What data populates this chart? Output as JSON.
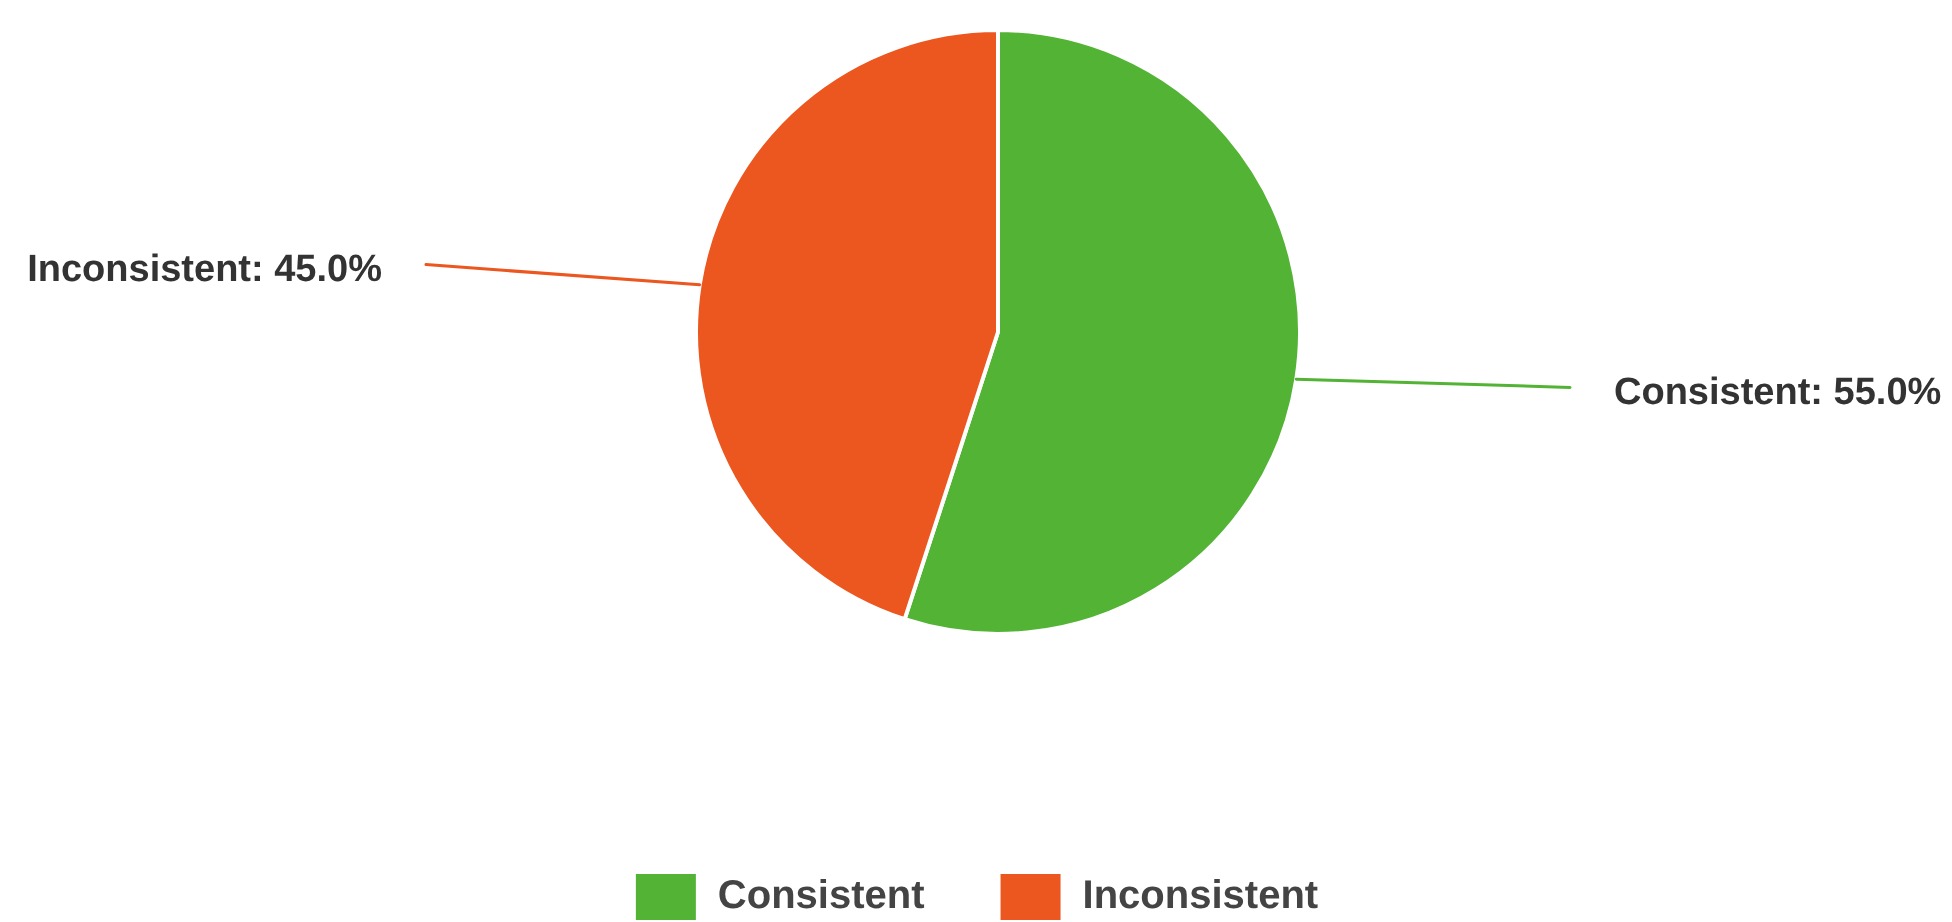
{
  "chart_data": {
    "type": "pie",
    "categories": [
      "Consistent",
      "Inconsistent"
    ],
    "values": [
      55.0,
      45.0
    ],
    "colors": [
      "#52b335",
      "#ec561f"
    ],
    "value_labels": [
      "Consistent: 55.0%",
      "Inconsistent: 45.0%"
    ],
    "legend": "bottom"
  }
}
